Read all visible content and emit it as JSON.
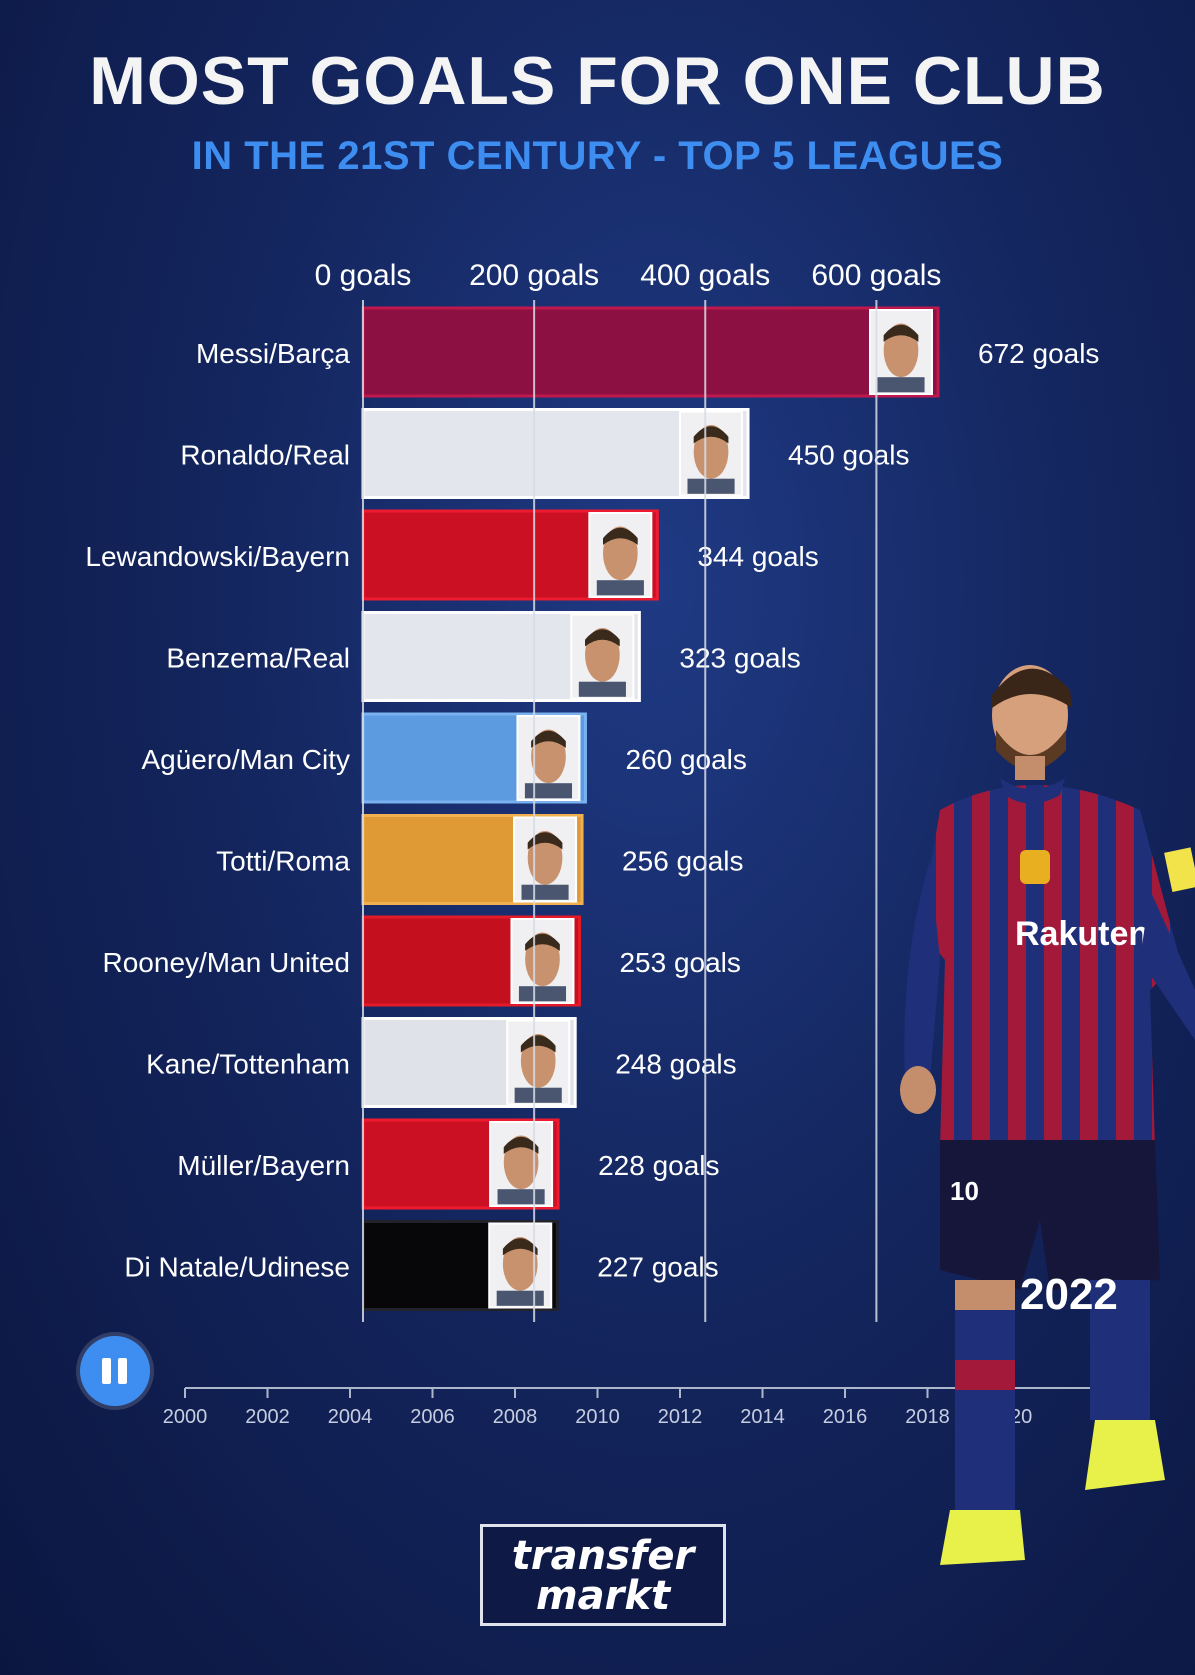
{
  "title": "MOST GOALS FOR ONE CLUB",
  "subtitle": "IN THE 21ST CENTURY - TOP 5 LEAGUES",
  "year": "2022",
  "timeline": {
    "ticks": [
      "2000",
      "2002",
      "2004",
      "2006",
      "2008",
      "2010",
      "2012",
      "2014",
      "2016",
      "2018",
      "2020"
    ],
    "current": "2022"
  },
  "logo": {
    "line1": "transfer",
    "line2": "markt"
  },
  "sponsor_text": "Rakuten",
  "shirt_number": "10",
  "icons": {
    "pause": "pause-icon",
    "portrait": "player-portrait-icon"
  },
  "colors": {
    "barca": "#8c1041",
    "real": "#e4e6ee",
    "bayern": "#cc1024",
    "mancity": "#5c9be0",
    "roma": "#df9a35",
    "manutd": "#c4101e",
    "tottenham": "#e0e2ea",
    "udinese": "#07070a",
    "accent": "#3d8ef0"
  },
  "chart_data": {
    "type": "bar",
    "orientation": "horizontal",
    "title": "MOST GOALS FOR ONE CLUB",
    "subtitle": "IN THE 21ST CENTURY - TOP 5 LEAGUES",
    "xlim": [
      0,
      672
    ],
    "x_ticks": [
      0,
      200,
      400,
      600
    ],
    "x_tick_labels": [
      "0 goals",
      "200 goals",
      "400 goals",
      "600 goals"
    ],
    "grid": true,
    "categories": [
      "Messi/Barça",
      "Ronaldo/Real",
      "Lewandowski/Bayern",
      "Benzema/Real",
      "Agüero/Man City",
      "Totti/Roma",
      "Rooney/Man United",
      "Kane/Tottenham",
      "Müller/Bayern",
      "Di Natale/Udinese"
    ],
    "values": [
      672,
      450,
      344,
      323,
      260,
      256,
      253,
      248,
      228,
      227
    ],
    "value_labels": [
      "672 goals",
      "450 goals",
      "344 goals",
      "323 goals",
      "260 goals",
      "256 goals",
      "253 goals",
      "248 goals",
      "228 goals",
      "227 goals"
    ],
    "bar_colors": [
      "#8c1041",
      "#e4e6ee",
      "#cc1024",
      "#e4e6ee",
      "#5c9be0",
      "#df9a35",
      "#c4101e",
      "#e0e2ea",
      "#cc1024",
      "#07070a"
    ],
    "border_colors": [
      "#c0184d",
      "#ffffff",
      "#ee1a30",
      "#ffffff",
      "#7ab2f0",
      "#f0b050",
      "#e41a28",
      "#ffffff",
      "#ee1a30",
      "#22222a"
    ]
  }
}
